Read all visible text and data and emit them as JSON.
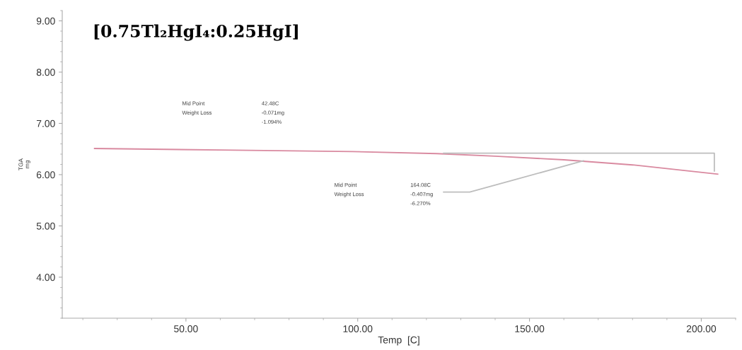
{
  "chart_data": {
    "type": "line",
    "title": "[0.75Tl₂HgI₄:0.25HgI]",
    "xlabel": "Temp  [C]",
    "ylabel": "TGA\nmg",
    "xlim": [
      14,
      210
    ],
    "ylim": [
      3.2,
      9.2
    ],
    "xticks": [
      {
        "value": 50,
        "label": "50.00"
      },
      {
        "value": 100,
        "label": "100.00"
      },
      {
        "value": 150,
        "label": "150.00"
      },
      {
        "value": 200,
        "label": "200.00"
      }
    ],
    "yticks": [
      {
        "value": 4,
        "label": "4.00"
      },
      {
        "value": 5,
        "label": "5.00"
      },
      {
        "value": 6,
        "label": "6.00"
      },
      {
        "value": 7,
        "label": "7.00"
      },
      {
        "value": 8,
        "label": "8.00"
      },
      {
        "value": 9,
        "label": "9.00"
      }
    ],
    "grid": false,
    "legend": false,
    "series": [
      {
        "color": "#d98aa0",
        "x": [
          23.4,
          60,
          98.5,
          123,
          140,
          160,
          180,
          204.8
        ],
        "values": [
          6.51,
          6.48,
          6.45,
          6.41,
          6.36,
          6.29,
          6.19,
          6.01
        ]
      },
      {
        "color": "#bdbdbd",
        "x": [
          125,
          203.8,
          203.8
        ],
        "values": [
          6.42,
          6.42,
          6.07
        ]
      },
      {
        "color": "#bdbdbd",
        "x": [
          125,
          132.6,
          165.7
        ],
        "values": [
          5.66,
          5.66,
          6.27
        ]
      }
    ],
    "annotations": [
      "Mid Point",
      "Weight Loss",
      "42.48C",
      "-0.071mg",
      "-1.094%",
      "Mid Point",
      "Weight Loss",
      "164.08C",
      "-0.407mg",
      "-6.270%"
    ]
  }
}
